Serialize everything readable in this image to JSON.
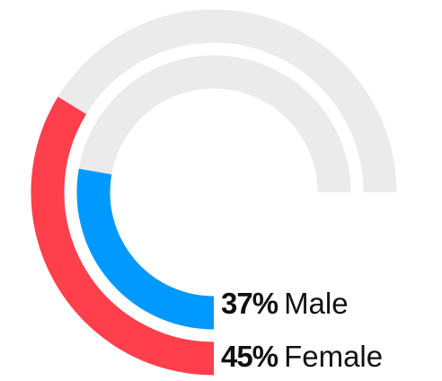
{
  "chart_data": {
    "type": "radial-bar",
    "title": "",
    "max_percent": 100,
    "track_color": "#ebebeb",
    "series": [
      {
        "name": "Male",
        "value": 37,
        "value_label": "37%",
        "color": "#0099ff"
      },
      {
        "name": "Female",
        "value": 45,
        "value_label": "45%",
        "color": "#ff3f4b"
      }
    ]
  }
}
